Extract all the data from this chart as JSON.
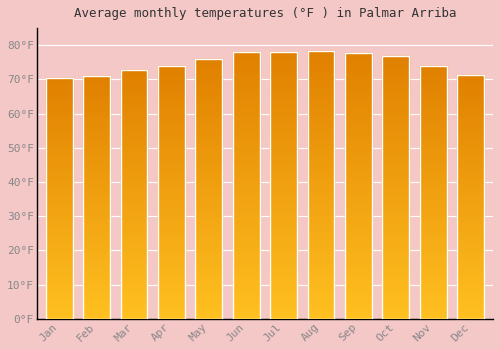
{
  "title": "Average monthly temperatures (°F ) in Palmar Arriba",
  "months": [
    "Jan",
    "Feb",
    "Mar",
    "Apr",
    "May",
    "Jun",
    "Jul",
    "Aug",
    "Sep",
    "Oct",
    "Nov",
    "Dec"
  ],
  "values": [
    70.5,
    71.0,
    72.8,
    74.0,
    76.0,
    78.0,
    78.0,
    78.3,
    77.8,
    76.8,
    74.0,
    71.3
  ],
  "bar_color_bottom": "#FFC020",
  "bar_color_top": "#E08000",
  "bar_edge_color": "#FFFFFF",
  "background_color": "#F5C8C8",
  "plot_bg_color": "#F5C8C8",
  "grid_color": "#FFFFFF",
  "title_fontsize": 9,
  "tick_label_color": "#888888",
  "ytick_labels": [
    "0°F",
    "10°F",
    "20°F",
    "30°F",
    "40°F",
    "50°F",
    "60°F",
    "70°F",
    "80°F"
  ],
  "ytick_values": [
    0,
    10,
    20,
    30,
    40,
    50,
    60,
    70,
    80
  ],
  "ylim": [
    0,
    85
  ],
  "font_family": "monospace"
}
